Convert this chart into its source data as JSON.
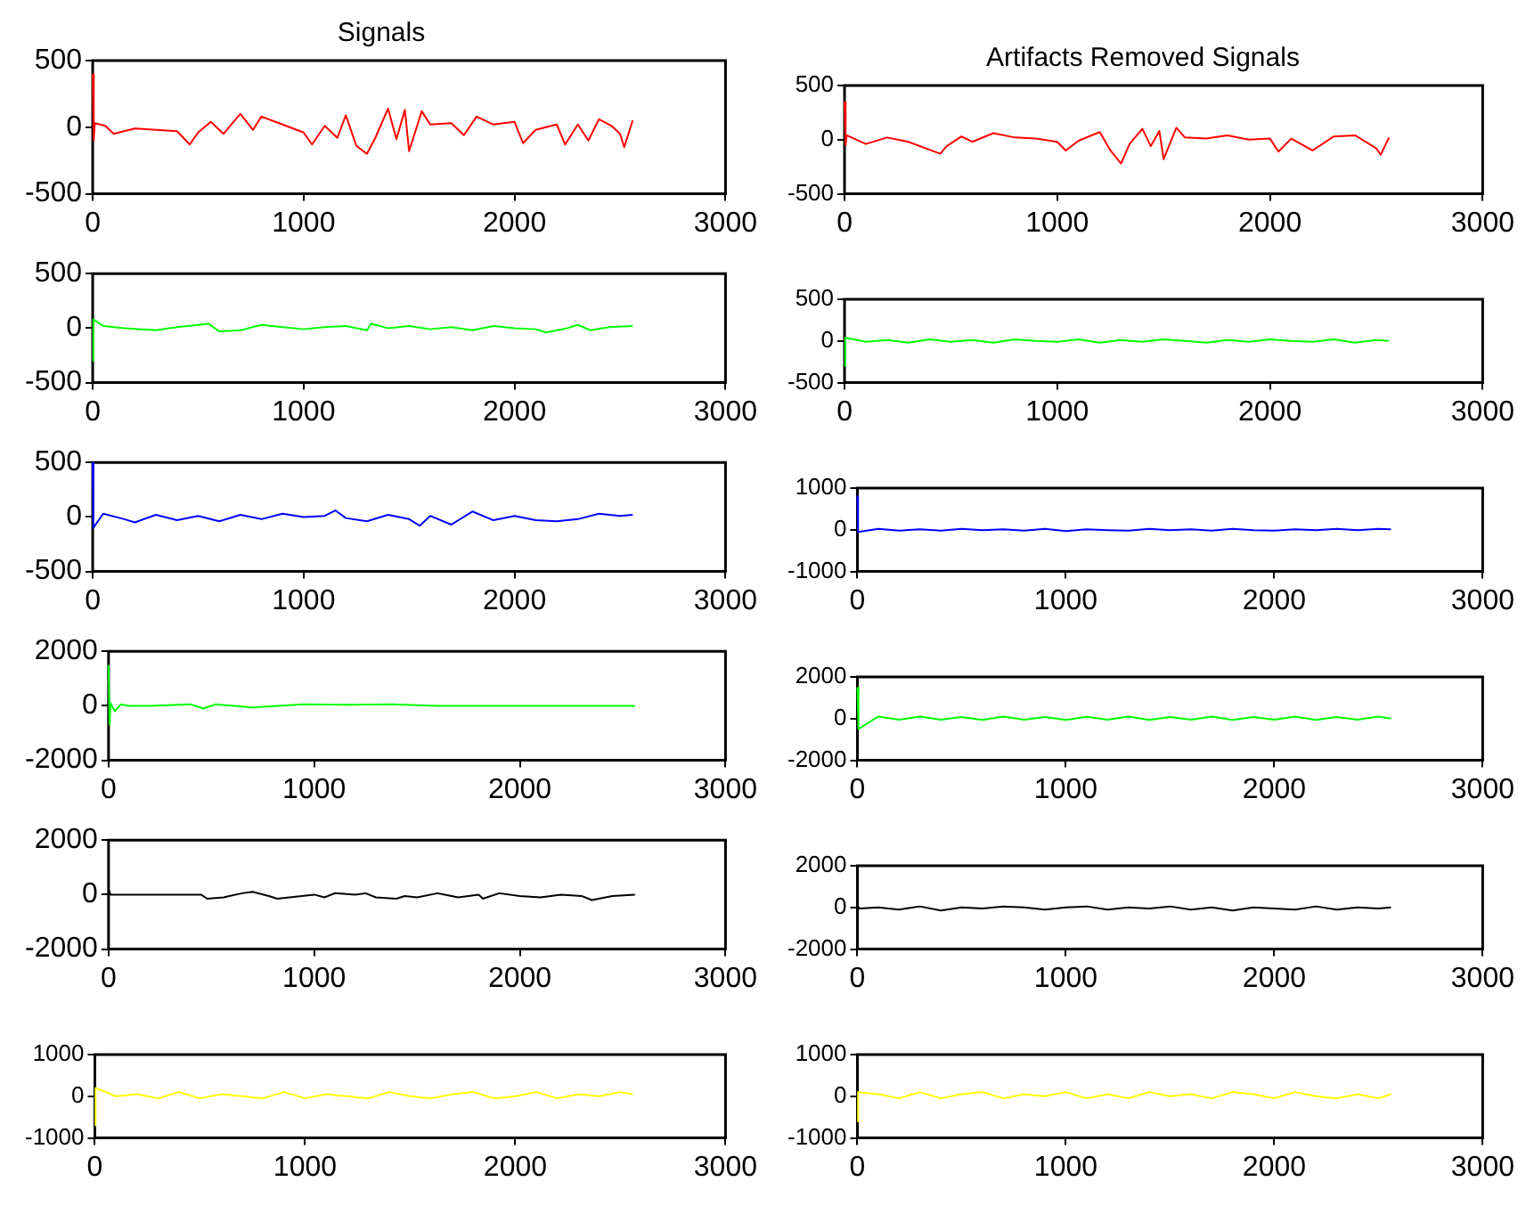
{
  "chart_data": [
    {
      "type": "line",
      "title": "Signals",
      "color": "#ff0000",
      "xlim": [
        0,
        3000
      ],
      "xticks": [
        0,
        1000,
        2000,
        3000
      ],
      "ylim": [
        -500,
        500
      ],
      "yticks": [
        -500,
        0,
        500
      ],
      "x": [
        0,
        5,
        10,
        60,
        100,
        200,
        300,
        400,
        460,
        500,
        560,
        620,
        700,
        760,
        800,
        900,
        1000,
        1040,
        1100,
        1160,
        1200,
        1250,
        1300,
        1340,
        1400,
        1440,
        1480,
        1500,
        1560,
        1600,
        1700,
        1760,
        1820,
        1900,
        2000,
        2040,
        2100,
        2200,
        2240,
        2300,
        2350,
        2400,
        2460,
        2500,
        2520,
        2560
      ],
      "values": [
        400,
        -100,
        30,
        10,
        -50,
        -10,
        -20,
        -30,
        -130,
        -40,
        40,
        -50,
        100,
        -20,
        80,
        20,
        -40,
        -130,
        10,
        -80,
        90,
        -140,
        -200,
        -80,
        140,
        -90,
        130,
        -180,
        120,
        20,
        30,
        -60,
        80,
        20,
        40,
        -120,
        -20,
        20,
        -130,
        20,
        -100,
        60,
        10,
        -50,
        -150,
        50
      ]
    },
    {
      "type": "line",
      "title": "Artifacts Removed Signals",
      "color": "#ff0000",
      "xlim": [
        0,
        3000
      ],
      "xticks": [
        0,
        1000,
        2000,
        3000
      ],
      "ylim": [
        -500,
        500
      ],
      "yticks": [
        -500,
        0,
        500
      ],
      "x": [
        0,
        5,
        10,
        100,
        200,
        300,
        450,
        480,
        550,
        600,
        700,
        800,
        900,
        1000,
        1040,
        1100,
        1200,
        1250,
        1300,
        1340,
        1400,
        1440,
        1480,
        1500,
        1560,
        1600,
        1700,
        1800,
        1900,
        2000,
        2040,
        2100,
        2200,
        2300,
        2400,
        2500,
        2520,
        2560
      ],
      "values": [
        350,
        -50,
        40,
        -40,
        20,
        -20,
        -130,
        -60,
        30,
        -20,
        60,
        20,
        10,
        -20,
        -100,
        -10,
        70,
        -100,
        -220,
        -40,
        100,
        -60,
        80,
        -180,
        110,
        20,
        10,
        40,
        0,
        10,
        -110,
        10,
        -100,
        30,
        40,
        -80,
        -140,
        20
      ]
    },
    {
      "type": "line",
      "color": "#00ff00",
      "xlim": [
        0,
        3000
      ],
      "xticks": [
        0,
        1000,
        2000,
        3000
      ],
      "ylim": [
        -500,
        500
      ],
      "yticks": [
        -500,
        0,
        500
      ],
      "x": [
        0,
        3,
        50,
        150,
        300,
        400,
        550,
        600,
        700,
        800,
        900,
        1000,
        1100,
        1200,
        1300,
        1320,
        1400,
        1500,
        1600,
        1700,
        1800,
        1900,
        2000,
        2100,
        2150,
        2250,
        2300,
        2360,
        2450,
        2560
      ],
      "values": [
        -300,
        80,
        20,
        0,
        -20,
        10,
        40,
        -30,
        -20,
        30,
        10,
        -10,
        10,
        20,
        -20,
        40,
        0,
        20,
        -10,
        10,
        -20,
        20,
        0,
        -10,
        -40,
        0,
        30,
        -20,
        10,
        20
      ]
    },
    {
      "type": "line",
      "color": "#00ff00",
      "xlim": [
        0,
        3000
      ],
      "xticks": [
        0,
        1000,
        2000,
        3000
      ],
      "ylim": [
        -500,
        500
      ],
      "yticks": [
        -500,
        0,
        500
      ],
      "x": [
        0,
        3,
        100,
        200,
        300,
        400,
        500,
        600,
        700,
        800,
        900,
        1000,
        1100,
        1200,
        1300,
        1400,
        1500,
        1600,
        1700,
        1800,
        1900,
        2000,
        2100,
        2200,
        2300,
        2400,
        2500,
        2560
      ],
      "values": [
        -300,
        40,
        -10,
        10,
        -20,
        20,
        -10,
        10,
        -20,
        20,
        0,
        -10,
        20,
        -20,
        10,
        -10,
        20,
        0,
        -20,
        10,
        -10,
        20,
        0,
        -10,
        20,
        -20,
        10,
        0
      ]
    },
    {
      "type": "line",
      "color": "#0000ff",
      "xlim": [
        0,
        3000
      ],
      "xticks": [
        0,
        1000,
        2000,
        3000
      ],
      "ylim": [
        -500,
        500
      ],
      "yticks": [
        -500,
        0,
        500
      ],
      "x": [
        0,
        3,
        50,
        150,
        200,
        300,
        400,
        500,
        600,
        700,
        800,
        900,
        1000,
        1100,
        1150,
        1200,
        1300,
        1400,
        1500,
        1550,
        1600,
        1700,
        1800,
        1900,
        2000,
        2100,
        2200,
        2300,
        2400,
        2500,
        2560
      ],
      "values": [
        500,
        -100,
        30,
        -20,
        -50,
        20,
        -30,
        10,
        -40,
        20,
        -20,
        30,
        0,
        10,
        60,
        -10,
        -40,
        20,
        -20,
        -80,
        10,
        -70,
        50,
        -30,
        10,
        -30,
        -40,
        -20,
        30,
        10,
        20
      ]
    },
    {
      "type": "line",
      "color": "#0000ff",
      "xlim": [
        0,
        3000
      ],
      "xticks": [
        0,
        1000,
        2000,
        3000
      ],
      "ylim": [
        -1000,
        1000
      ],
      "yticks": [
        -1000,
        0,
        1000
      ],
      "x": [
        0,
        3,
        100,
        200,
        300,
        400,
        500,
        600,
        700,
        800,
        900,
        1000,
        1100,
        1200,
        1300,
        1400,
        1500,
        1600,
        1700,
        1800,
        1900,
        2000,
        2100,
        2200,
        2300,
        2400,
        2500,
        2560
      ],
      "values": [
        800,
        -50,
        20,
        -20,
        10,
        -20,
        20,
        -10,
        10,
        -20,
        20,
        -30,
        10,
        -10,
        -20,
        20,
        -10,
        10,
        -20,
        20,
        -10,
        -20,
        10,
        -10,
        20,
        -10,
        20,
        10
      ]
    },
    {
      "type": "line",
      "color": "#00ff00",
      "xlim": [
        0,
        3000
      ],
      "xticks": [
        0,
        1000,
        2000,
        3000
      ],
      "ylim": [
        -2000,
        2000
      ],
      "yticks": [
        -2000,
        0,
        2000
      ],
      "x": [
        0,
        5,
        10,
        30,
        60,
        100,
        200,
        400,
        460,
        520,
        700,
        950,
        1150,
        1380,
        1600,
        2000,
        2300,
        2560
      ],
      "values": [
        1500,
        -700,
        100,
        -200,
        50,
        0,
        0,
        50,
        -100,
        50,
        -60,
        50,
        40,
        50,
        0,
        0,
        0,
        0
      ]
    },
    {
      "type": "line",
      "color": "#00ff00",
      "xlim": [
        0,
        3000
      ],
      "xticks": [
        0,
        1000,
        2000,
        3000
      ],
      "ylim": [
        -2000,
        2000
      ],
      "yticks": [
        -2000,
        0,
        2000
      ],
      "x": [
        0,
        5,
        100,
        200,
        300,
        400,
        500,
        600,
        700,
        800,
        900,
        1000,
        1100,
        1200,
        1300,
        1400,
        1500,
        1600,
        1700,
        1800,
        1900,
        2000,
        2100,
        2200,
        2300,
        2400,
        2500,
        2560
      ],
      "values": [
        1500,
        -500,
        100,
        -50,
        100,
        -50,
        80,
        -60,
        100,
        -50,
        80,
        -60,
        90,
        -50,
        100,
        -60,
        80,
        -50,
        100,
        -60,
        80,
        -50,
        100,
        -60,
        80,
        -50,
        100,
        0
      ]
    },
    {
      "type": "line",
      "color": "#000000",
      "xlim": [
        0,
        3000
      ],
      "xticks": [
        0,
        1000,
        2000,
        3000
      ],
      "ylim": [
        -2000,
        2000
      ],
      "yticks": [
        -2000,
        0,
        2000
      ],
      "x": [
        0,
        10,
        100,
        450,
        480,
        560,
        650,
        700,
        780,
        820,
        1000,
        1050,
        1100,
        1200,
        1250,
        1300,
        1400,
        1440,
        1500,
        1600,
        1700,
        1800,
        1820,
        1900,
        2000,
        2100,
        2200,
        2300,
        2350,
        2450,
        2560
      ],
      "values": [
        200,
        0,
        0,
        0,
        -150,
        -100,
        50,
        100,
        -50,
        -150,
        0,
        -100,
        50,
        0,
        50,
        -100,
        -150,
        -50,
        -100,
        50,
        -100,
        0,
        -150,
        50,
        -50,
        -100,
        0,
        -50,
        -200,
        -50,
        0
      ]
    },
    {
      "type": "line",
      "color": "#000000",
      "xlim": [
        0,
        3000
      ],
      "xticks": [
        0,
        1000,
        2000,
        3000
      ],
      "ylim": [
        -2000,
        2000
      ],
      "yticks": [
        -2000,
        0,
        2000
      ],
      "x": [
        0,
        10,
        100,
        200,
        300,
        400,
        500,
        600,
        700,
        800,
        900,
        1000,
        1100,
        1200,
        1300,
        1400,
        1500,
        1600,
        1700,
        1800,
        1900,
        2000,
        2100,
        2200,
        2300,
        2400,
        2500,
        2560
      ],
      "values": [
        100,
        -50,
        0,
        -100,
        50,
        -150,
        0,
        -50,
        50,
        0,
        -100,
        0,
        50,
        -100,
        0,
        -50,
        50,
        -100,
        0,
        -150,
        0,
        -50,
        -100,
        50,
        -100,
        0,
        -50,
        0
      ]
    },
    {
      "type": "line",
      "color": "#ffff00",
      "xlim": [
        0,
        3000
      ],
      "xticks": [
        0,
        1000,
        2000,
        3000
      ],
      "ylim": [
        -1000,
        1000
      ],
      "yticks": [
        -1000,
        0,
        1000
      ],
      "x": [
        0,
        3,
        100,
        200,
        300,
        400,
        500,
        600,
        700,
        800,
        900,
        1000,
        1100,
        1200,
        1300,
        1400,
        1500,
        1600,
        1700,
        1800,
        1900,
        2000,
        2100,
        2200,
        2300,
        2400,
        2500,
        2560
      ],
      "values": [
        -700,
        200,
        0,
        50,
        -50,
        100,
        -50,
        50,
        0,
        -50,
        100,
        -50,
        50,
        0,
        -50,
        100,
        0,
        -50,
        50,
        100,
        -50,
        0,
        100,
        -50,
        50,
        0,
        100,
        50
      ]
    },
    {
      "type": "line",
      "color": "#ffff00",
      "xlim": [
        0,
        3000
      ],
      "xticks": [
        0,
        1000,
        2000,
        3000
      ],
      "ylim": [
        -1000,
        1000
      ],
      "yticks": [
        -1000,
        0,
        1000
      ],
      "x": [
        0,
        3,
        100,
        200,
        300,
        400,
        500,
        600,
        700,
        800,
        900,
        1000,
        1100,
        1200,
        1300,
        1400,
        1500,
        1600,
        1700,
        1800,
        1900,
        2000,
        2100,
        2200,
        2300,
        2400,
        2500,
        2560
      ],
      "values": [
        -600,
        100,
        50,
        -50,
        100,
        -50,
        50,
        100,
        -50,
        50,
        0,
        100,
        -50,
        50,
        -50,
        100,
        0,
        50,
        -50,
        100,
        50,
        -50,
        100,
        0,
        -50,
        50,
        -50,
        50
      ]
    }
  ]
}
